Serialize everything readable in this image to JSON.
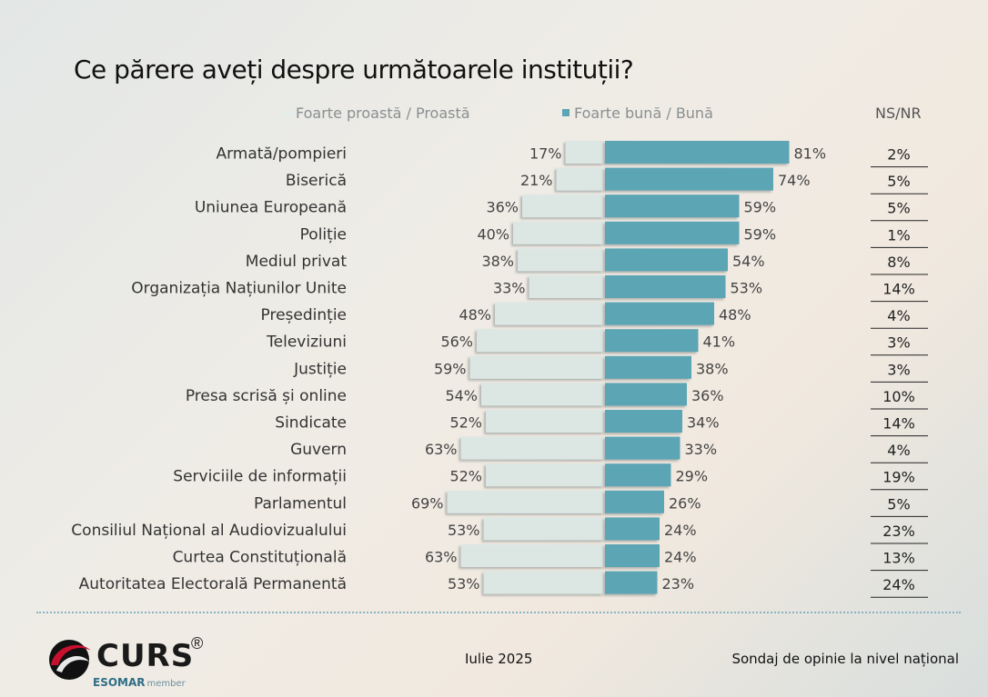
{
  "header": {
    "title": "Ce părere aveți despre următoarele instituții?"
  },
  "legend": {
    "negative_label": "Foarte proastă / Proastă",
    "positive_label": "Foarte bună / Bună",
    "nsnr_label": "NS/NR"
  },
  "colors": {
    "negative": "#dce7e4",
    "positive": "#5ba5b4",
    "accent_line": "#8ab3c2"
  },
  "chart_data": {
    "type": "bar",
    "categories": [
      "Armată/pompieri",
      "Biserică",
      "Uniunea Europeană",
      "Poliție",
      "Mediul privat",
      "Organizația Națiunilor Unite",
      "Președinție",
      "Televiziuni",
      "Justiție",
      "Presa scrisă  și online",
      "Sindicate",
      "Guvern",
      "Serviciile de informații",
      "Parlamentul",
      "Consiliul Național al Audiovizualului",
      "Curtea Constituțională",
      "Autoritatea Electorală Permanentă"
    ],
    "series": [
      {
        "name": "Foarte proastă / Proastă",
        "values": [
          17,
          21,
          36,
          40,
          38,
          33,
          48,
          56,
          59,
          54,
          52,
          63,
          52,
          69,
          53,
          63,
          53
        ],
        "labels": [
          "17%",
          "21%",
          "36%",
          "40%",
          "38%",
          "33%",
          "48%",
          "56%",
          "59%",
          "54%",
          "52%",
          "63%",
          "52%",
          "69%",
          "53%",
          "63%",
          "53%"
        ]
      },
      {
        "name": "Foarte bună / Bună",
        "values": [
          81,
          74,
          59,
          59,
          54,
          53,
          48,
          41,
          38,
          36,
          34,
          33,
          29,
          26,
          24,
          24,
          23
        ],
        "labels": [
          "81%",
          "74%",
          "59%",
          "59%",
          "54%",
          "53%",
          "48%",
          "41%",
          "38%",
          "36%",
          "34%",
          "33%",
          "29%",
          "26%",
          "24%",
          "24%",
          "23%"
        ]
      },
      {
        "name": "NS/NR",
        "values": [
          2,
          5,
          5,
          1,
          8,
          14,
          4,
          3,
          3,
          10,
          14,
          4,
          19,
          5,
          23,
          13,
          24
        ],
        "labels": [
          "2%",
          "5%",
          "5%",
          "1%",
          "8%",
          "14%",
          "4%",
          "3%",
          "3%",
          "10%",
          "14%",
          "4%",
          "19%",
          "5%",
          "23%",
          "13%",
          "24%"
        ]
      }
    ]
  },
  "footer": {
    "brand": "CURS",
    "registered": "®",
    "esomar": "ESOMAR",
    "member": "member",
    "date": "Iulie 2025",
    "survey": "Sondaj de opinie la nivel național"
  }
}
